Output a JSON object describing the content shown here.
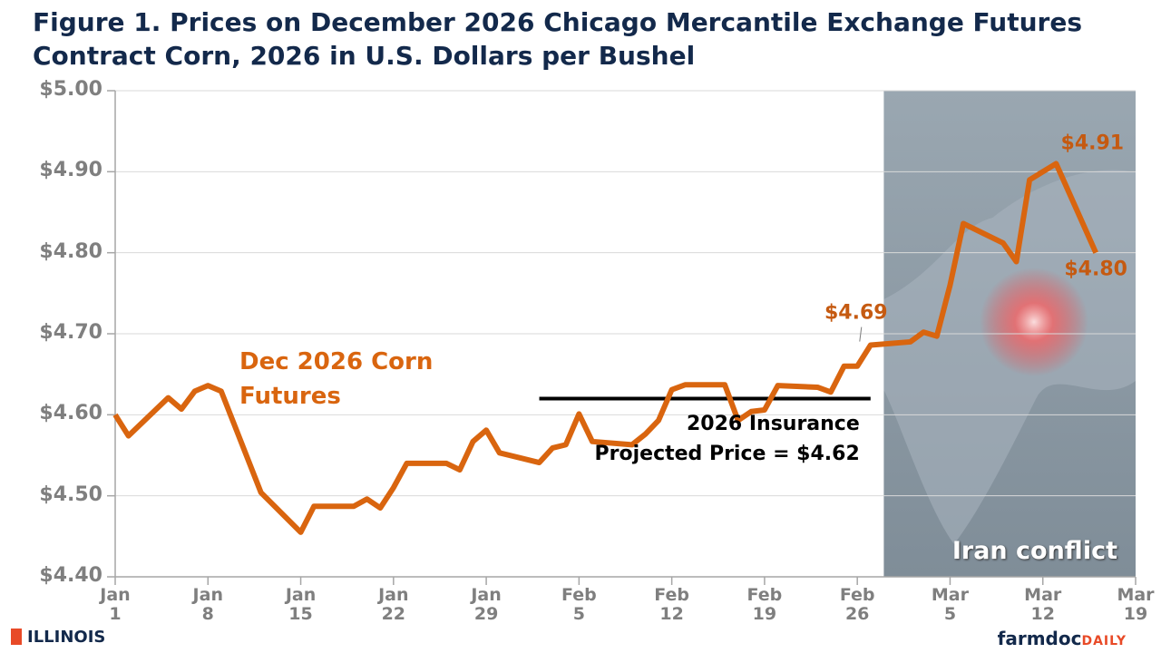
{
  "chart_data": {
    "type": "line",
    "title": "Figure 1.  Prices on December 2026 Chicago Mercantile Exchange Futures Contract Corn, 2026 in U.S. Dollars per Bushel",
    "x": [
      "Jan 1",
      "Jan 2",
      "Jan 5",
      "Jan 6",
      "Jan 7",
      "Jan 8",
      "Jan 9",
      "Jan 12",
      "Jan 15",
      "Jan 16",
      "Jan 19",
      "Jan 20",
      "Jan 21",
      "Jan 22",
      "Jan 23",
      "Jan 26",
      "Jan 27",
      "Jan 28",
      "Jan 29",
      "Jan 30",
      "Feb 2",
      "Feb 3",
      "Feb 4",
      "Feb 5",
      "Feb 6",
      "Feb 9",
      "Feb 10",
      "Feb 11",
      "Feb 12",
      "Feb 13",
      "Feb 16",
      "Feb 17",
      "Feb 18",
      "Feb 19",
      "Feb 20",
      "Feb 23",
      "Feb 24",
      "Feb 25",
      "Feb 26",
      "Feb 27",
      "Mar 2",
      "Mar 3",
      "Mar 4",
      "Mar 5",
      "Mar 6",
      "Mar 9",
      "Mar 10",
      "Mar 11",
      "Mar 12",
      "Mar 13",
      "Mar 16"
    ],
    "series": [
      {
        "name": "Dec 2026 Corn Futures",
        "color": "#d9650f",
        "values": [
          4.6,
          4.574,
          4.621,
          4.607,
          4.629,
          4.636,
          4.629,
          4.504,
          4.455,
          4.487,
          4.487,
          4.496,
          4.485,
          4.51,
          4.54,
          4.54,
          4.532,
          4.567,
          4.581,
          4.553,
          4.541,
          4.559,
          4.563,
          4.601,
          4.567,
          4.563,
          4.576,
          4.593,
          4.631,
          4.637,
          4.637,
          4.593,
          4.604,
          4.606,
          4.636,
          4.634,
          4.628,
          4.66,
          4.66,
          4.686,
          4.69,
          4.702,
          4.697,
          4.76,
          4.836,
          4.812,
          4.789,
          4.89,
          4.9,
          4.91,
          4.8
        ],
        "value_labels": [
          null,
          null,
          null,
          null,
          null,
          null,
          null,
          null,
          null,
          null,
          null,
          null,
          null,
          null,
          null,
          null,
          null,
          null,
          null,
          null,
          null,
          null,
          null,
          null,
          null,
          null,
          null,
          null,
          null,
          null,
          null,
          null,
          null,
          null,
          null,
          null,
          null,
          null,
          null,
          "$4.69",
          null,
          null,
          null,
          null,
          null,
          null,
          null,
          null,
          null,
          "$4.91",
          "$4.80"
        ]
      }
    ],
    "xlim": [
      "Jan 1",
      "Mar 19"
    ],
    "xticks": [
      "Jan 1",
      "Jan 8",
      "Jan 15",
      "Jan 22",
      "Jan 29",
      "Feb 5",
      "Feb 12",
      "Feb 19",
      "Feb 26",
      "Mar 5",
      "Mar 12",
      "Mar 19"
    ],
    "ylim": [
      4.4,
      5.0
    ],
    "yticks": [
      {
        "value": 4.4,
        "label": "$4.40"
      },
      {
        "value": 4.5,
        "label": "$4.50"
      },
      {
        "value": 4.6,
        "label": "$4.60"
      },
      {
        "value": 4.7,
        "label": "$4.70"
      },
      {
        "value": 4.8,
        "label": "$4.80"
      },
      {
        "value": 4.9,
        "label": "$4.90"
      },
      {
        "value": 5.0,
        "label": "$5.00"
      }
    ],
    "grid": true,
    "reference_line": {
      "value": 4.62,
      "start": "Feb 2",
      "end": "Feb 27",
      "color": "#000000",
      "label_lines": [
        "2026 Insurance",
        "Projected Price = $4.62"
      ]
    },
    "shaded_region": {
      "start": "Feb 28",
      "end": "Mar 19",
      "label": "Iran conflict",
      "color": "#8e9ba6"
    }
  },
  "footer": {
    "left": "ILLINOIS",
    "right_main": "farmdoc",
    "right_accent": "DAILY"
  }
}
